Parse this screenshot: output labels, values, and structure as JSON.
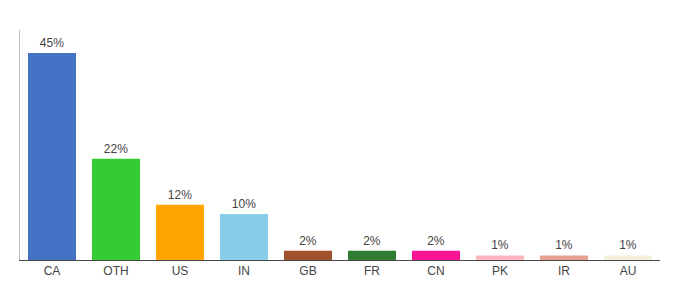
{
  "chart_data": {
    "type": "bar",
    "categories": [
      "CA",
      "OTH",
      "US",
      "IN",
      "GB",
      "FR",
      "CN",
      "PK",
      "IR",
      "AU"
    ],
    "values": [
      45,
      22,
      12,
      10,
      2,
      2,
      2,
      1,
      1,
      1
    ],
    "value_labels": [
      "45%",
      "22%",
      "12%",
      "10%",
      "2%",
      "2%",
      "2%",
      "1%",
      "1%",
      "1%"
    ],
    "colors": [
      "#4472C4",
      "#33CC33",
      "#FFA500",
      "#87CEEB",
      "#A0522D",
      "#2E7D32",
      "#FF1493",
      "#FFB6C1",
      "#E8A090",
      "#F5F0DC"
    ],
    "ylim": [
      0,
      50
    ],
    "data_labels": true,
    "tick_labels": "x",
    "grid": false
  }
}
